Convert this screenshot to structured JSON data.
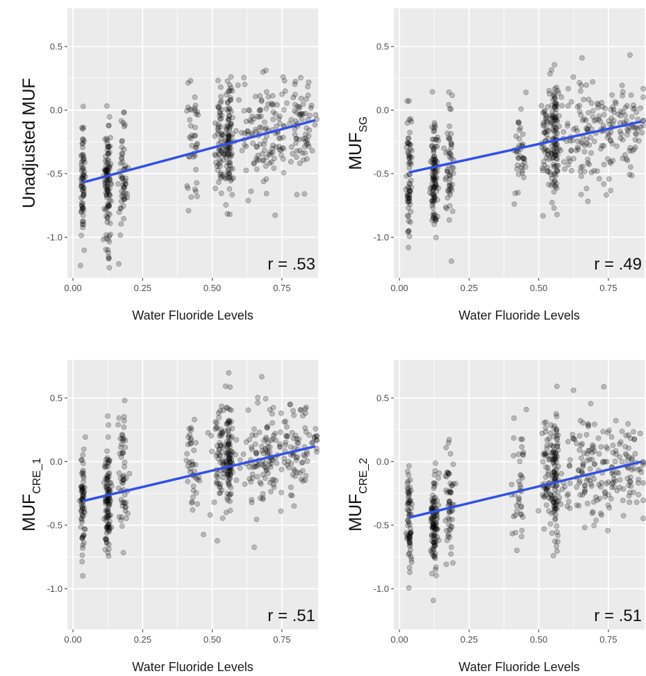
{
  "colors": {
    "panel_bg": "#ebebeb",
    "grid": "#ffffff",
    "point": "#000000",
    "fit_line": "#3050e8"
  },
  "chart_data": [
    {
      "type": "scatter",
      "ylabel_main": "Unadjusted MUF",
      "ylabel_sub": "",
      "xlabel": "Water Fluoride Levels",
      "annotation": "r = .53",
      "xlim": [
        -0.02,
        0.88
      ],
      "ylim": [
        -1.32,
        0.8
      ],
      "x_ticks": [
        0.0,
        0.25,
        0.5,
        0.75
      ],
      "x_tick_labels": [
        "0.00",
        "0.25",
        "0.50",
        "0.75"
      ],
      "y_ticks": [
        0.5,
        0.0,
        -0.5,
        -1.0
      ],
      "y_tick_labels": [
        "0.5",
        "0.0",
        "-0.5",
        "-1.0"
      ],
      "fit_line": {
        "x": [
          0.035,
          0.87
        ],
        "y": [
          -0.57,
          -0.08
        ]
      },
      "clusters": [
        {
          "x": 0.035,
          "y_mean": -0.56,
          "y_sd": 0.24,
          "n": 70,
          "x_spread": 0.004
        },
        {
          "x": 0.125,
          "y_mean": -0.57,
          "y_sd": 0.22,
          "n": 110,
          "x_spread": 0.006
        },
        {
          "x": 0.18,
          "y_mean": -0.58,
          "y_sd": 0.22,
          "n": 55,
          "x_spread": 0.008
        },
        {
          "x": 0.43,
          "y_mean": -0.3,
          "y_sd": 0.24,
          "n": 40,
          "x_spread": 0.012
        },
        {
          "x": 0.53,
          "y_mean": -0.21,
          "y_sd": 0.22,
          "n": 60,
          "x_spread": 0.012
        },
        {
          "x": 0.56,
          "y_mean": -0.22,
          "y_sd": 0.23,
          "n": 90,
          "x_spread": 0.006
        },
        {
          "x": 0.69,
          "y_mean": -0.18,
          "y_sd": 0.22,
          "n": 150,
          "x_spread": 0.07
        },
        {
          "x": 0.83,
          "y_mean": -0.12,
          "y_sd": 0.18,
          "n": 50,
          "x_spread": 0.03
        }
      ]
    },
    {
      "type": "scatter",
      "ylabel_main": "MUF",
      "ylabel_sub": "SG",
      "xlabel": "Water Fluoride Levels",
      "annotation": "r = .49",
      "xlim": [
        -0.02,
        0.88
      ],
      "ylim": [
        -1.32,
        0.8
      ],
      "x_ticks": [
        0.0,
        0.25,
        0.5,
        0.75
      ],
      "x_tick_labels": [
        "0.00",
        "0.25",
        "0.50",
        "0.75"
      ],
      "y_ticks": [
        0.5,
        0.0,
        -0.5,
        -1.0
      ],
      "y_tick_labels": [
        "0.5",
        "0.0",
        "-0.5",
        "-1.0"
      ],
      "fit_line": {
        "x": [
          0.035,
          0.87
        ],
        "y": [
          -0.49,
          -0.09
        ]
      },
      "clusters": [
        {
          "x": 0.035,
          "y_mean": -0.5,
          "y_sd": 0.25,
          "n": 70,
          "x_spread": 0.004
        },
        {
          "x": 0.125,
          "y_mean": -0.52,
          "y_sd": 0.21,
          "n": 110,
          "x_spread": 0.006
        },
        {
          "x": 0.18,
          "y_mean": -0.4,
          "y_sd": 0.26,
          "n": 55,
          "x_spread": 0.008
        },
        {
          "x": 0.43,
          "y_mean": -0.3,
          "y_sd": 0.18,
          "n": 40,
          "x_spread": 0.012
        },
        {
          "x": 0.53,
          "y_mean": -0.22,
          "y_sd": 0.22,
          "n": 60,
          "x_spread": 0.012
        },
        {
          "x": 0.56,
          "y_mean": -0.24,
          "y_sd": 0.23,
          "n": 90,
          "x_spread": 0.006
        },
        {
          "x": 0.69,
          "y_mean": -0.18,
          "y_sd": 0.24,
          "n": 150,
          "x_spread": 0.07
        },
        {
          "x": 0.83,
          "y_mean": -0.15,
          "y_sd": 0.18,
          "n": 50,
          "x_spread": 0.03
        }
      ]
    },
    {
      "type": "scatter",
      "ylabel_main": "MUF",
      "ylabel_sub": "CRE_1",
      "xlabel": "Water Fluoride Levels",
      "annotation": "r = .51",
      "xlim": [
        -0.02,
        0.88
      ],
      "ylim": [
        -1.32,
        0.8
      ],
      "x_ticks": [
        0.0,
        0.25,
        0.5,
        0.75
      ],
      "x_tick_labels": [
        "0.00",
        "0.25",
        "0.50",
        "0.75"
      ],
      "y_ticks": [
        0.5,
        0.0,
        -0.5,
        -1.0
      ],
      "y_tick_labels": [
        "0.5",
        "0.0",
        "-0.5",
        "-1.0"
      ],
      "fit_line": {
        "x": [
          0.035,
          0.87
        ],
        "y": [
          -0.31,
          0.12
        ]
      },
      "clusters": [
        {
          "x": 0.035,
          "y_mean": -0.32,
          "y_sd": 0.22,
          "n": 70,
          "x_spread": 0.004
        },
        {
          "x": 0.125,
          "y_mean": -0.3,
          "y_sd": 0.22,
          "n": 110,
          "x_spread": 0.006
        },
        {
          "x": 0.18,
          "y_mean": -0.1,
          "y_sd": 0.26,
          "n": 55,
          "x_spread": 0.008
        },
        {
          "x": 0.43,
          "y_mean": -0.05,
          "y_sd": 0.22,
          "n": 40,
          "x_spread": 0.012
        },
        {
          "x": 0.53,
          "y_mean": 0.02,
          "y_sd": 0.22,
          "n": 60,
          "x_spread": 0.012
        },
        {
          "x": 0.56,
          "y_mean": 0.0,
          "y_sd": 0.22,
          "n": 90,
          "x_spread": 0.006
        },
        {
          "x": 0.69,
          "y_mean": 0.05,
          "y_sd": 0.22,
          "n": 150,
          "x_spread": 0.07
        },
        {
          "x": 0.83,
          "y_mean": 0.08,
          "y_sd": 0.18,
          "n": 50,
          "x_spread": 0.03
        }
      ]
    },
    {
      "type": "scatter",
      "ylabel_main": "MUF",
      "ylabel_sub": "CRE_2",
      "xlabel": "Water Fluoride Levels",
      "annotation": "r = .51",
      "xlim": [
        -0.02,
        0.88
      ],
      "ylim": [
        -1.32,
        0.8
      ],
      "x_ticks": [
        0.0,
        0.25,
        0.5,
        0.75
      ],
      "x_tick_labels": [
        "0.00",
        "0.25",
        "0.50",
        "0.75"
      ],
      "y_ticks": [
        0.5,
        0.0,
        -0.5,
        -1.0
      ],
      "y_tick_labels": [
        "0.5",
        "0.0",
        "-0.5",
        "-1.0"
      ],
      "fit_line": {
        "x": [
          0.035,
          0.87
        ],
        "y": [
          -0.44,
          0.0
        ]
      },
      "clusters": [
        {
          "x": 0.035,
          "y_mean": -0.46,
          "y_sd": 0.22,
          "n": 70,
          "x_spread": 0.004
        },
        {
          "x": 0.125,
          "y_mean": -0.5,
          "y_sd": 0.22,
          "n": 110,
          "x_spread": 0.006
        },
        {
          "x": 0.18,
          "y_mean": -0.3,
          "y_sd": 0.25,
          "n": 55,
          "x_spread": 0.008
        },
        {
          "x": 0.43,
          "y_mean": -0.2,
          "y_sd": 0.22,
          "n": 40,
          "x_spread": 0.012
        },
        {
          "x": 0.53,
          "y_mean": -0.1,
          "y_sd": 0.22,
          "n": 60,
          "x_spread": 0.012
        },
        {
          "x": 0.56,
          "y_mean": -0.1,
          "y_sd": 0.24,
          "n": 90,
          "x_spread": 0.006
        },
        {
          "x": 0.69,
          "y_mean": -0.05,
          "y_sd": 0.22,
          "n": 150,
          "x_spread": 0.07
        },
        {
          "x": 0.83,
          "y_mean": -0.02,
          "y_sd": 0.18,
          "n": 50,
          "x_spread": 0.03
        }
      ]
    }
  ]
}
